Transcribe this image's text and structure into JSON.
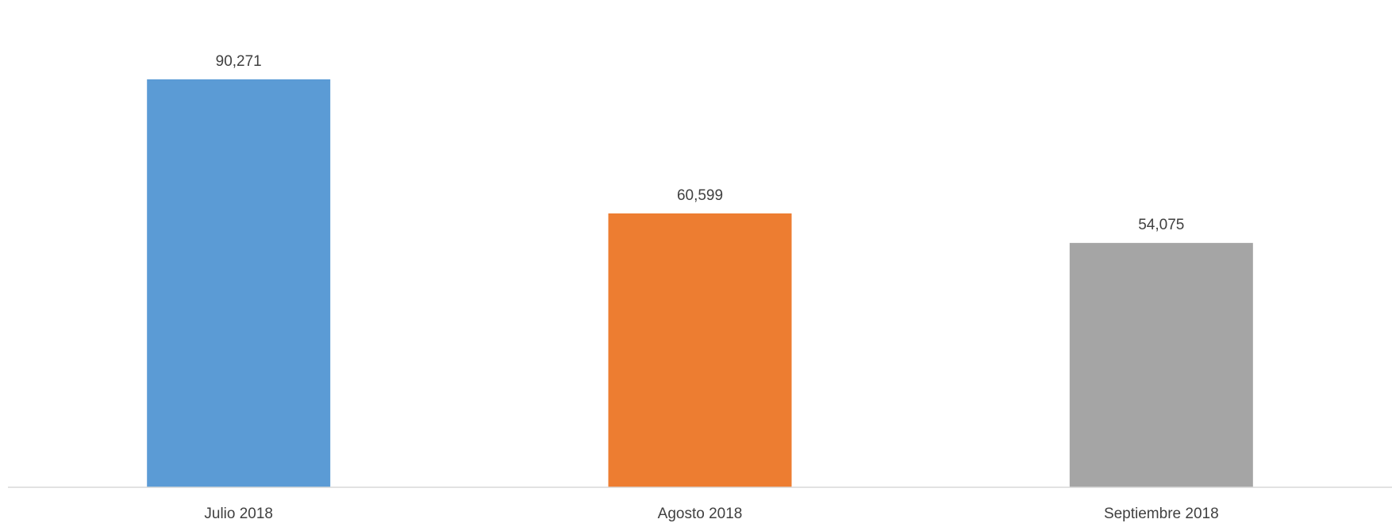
{
  "chart_data": {
    "type": "bar",
    "title": "",
    "xlabel": "",
    "ylabel": "",
    "categories": [
      "Julio 2018",
      "Agosto 2018",
      "Septiembre 2018"
    ],
    "values": [
      90271,
      60599,
      54075
    ],
    "value_labels": [
      "90,271",
      "60,599",
      "54,075"
    ],
    "colors": [
      "#5B9BD5",
      "#ED7D31",
      "#A5A5A5"
    ],
    "ylim": [
      0,
      100000
    ],
    "grid": false,
    "legend": "none"
  }
}
